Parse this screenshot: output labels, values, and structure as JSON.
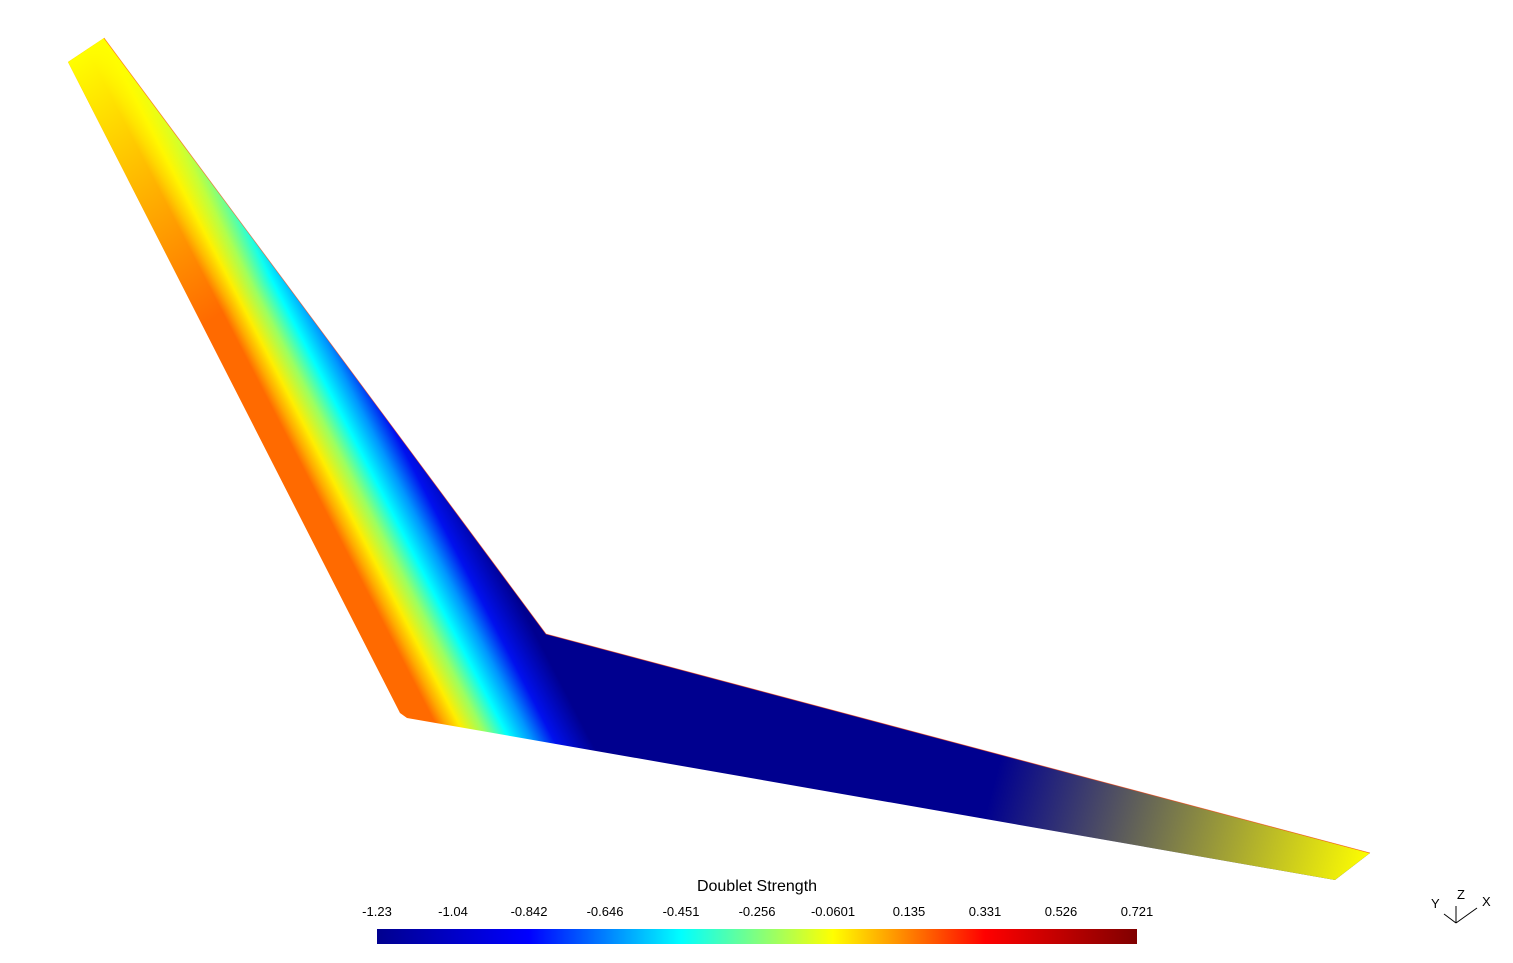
{
  "colorbar": {
    "title": "Doublet Strength",
    "ticks": [
      "-1.23",
      "-1.04",
      "-0.842",
      "-0.646",
      "-0.451",
      "-0.256",
      "-0.0601",
      "0.135",
      "0.331",
      "0.526",
      "0.721"
    ],
    "colormap": [
      "#00008f",
      "#0000ff",
      "#00ffff",
      "#ffff00",
      "#ff0000",
      "#800000"
    ]
  },
  "axes_triad": {
    "x_label": "X",
    "y_label": "Y",
    "z_label": "Z"
  },
  "surface": {
    "field": "Doublet Strength",
    "colors": {
      "trailing_edge": "#ff6a00",
      "aft_band": "#ffee00",
      "mid_band": "#00ffff",
      "leading_band": "#0000d8",
      "leading_edge": "#00008f"
    }
  }
}
